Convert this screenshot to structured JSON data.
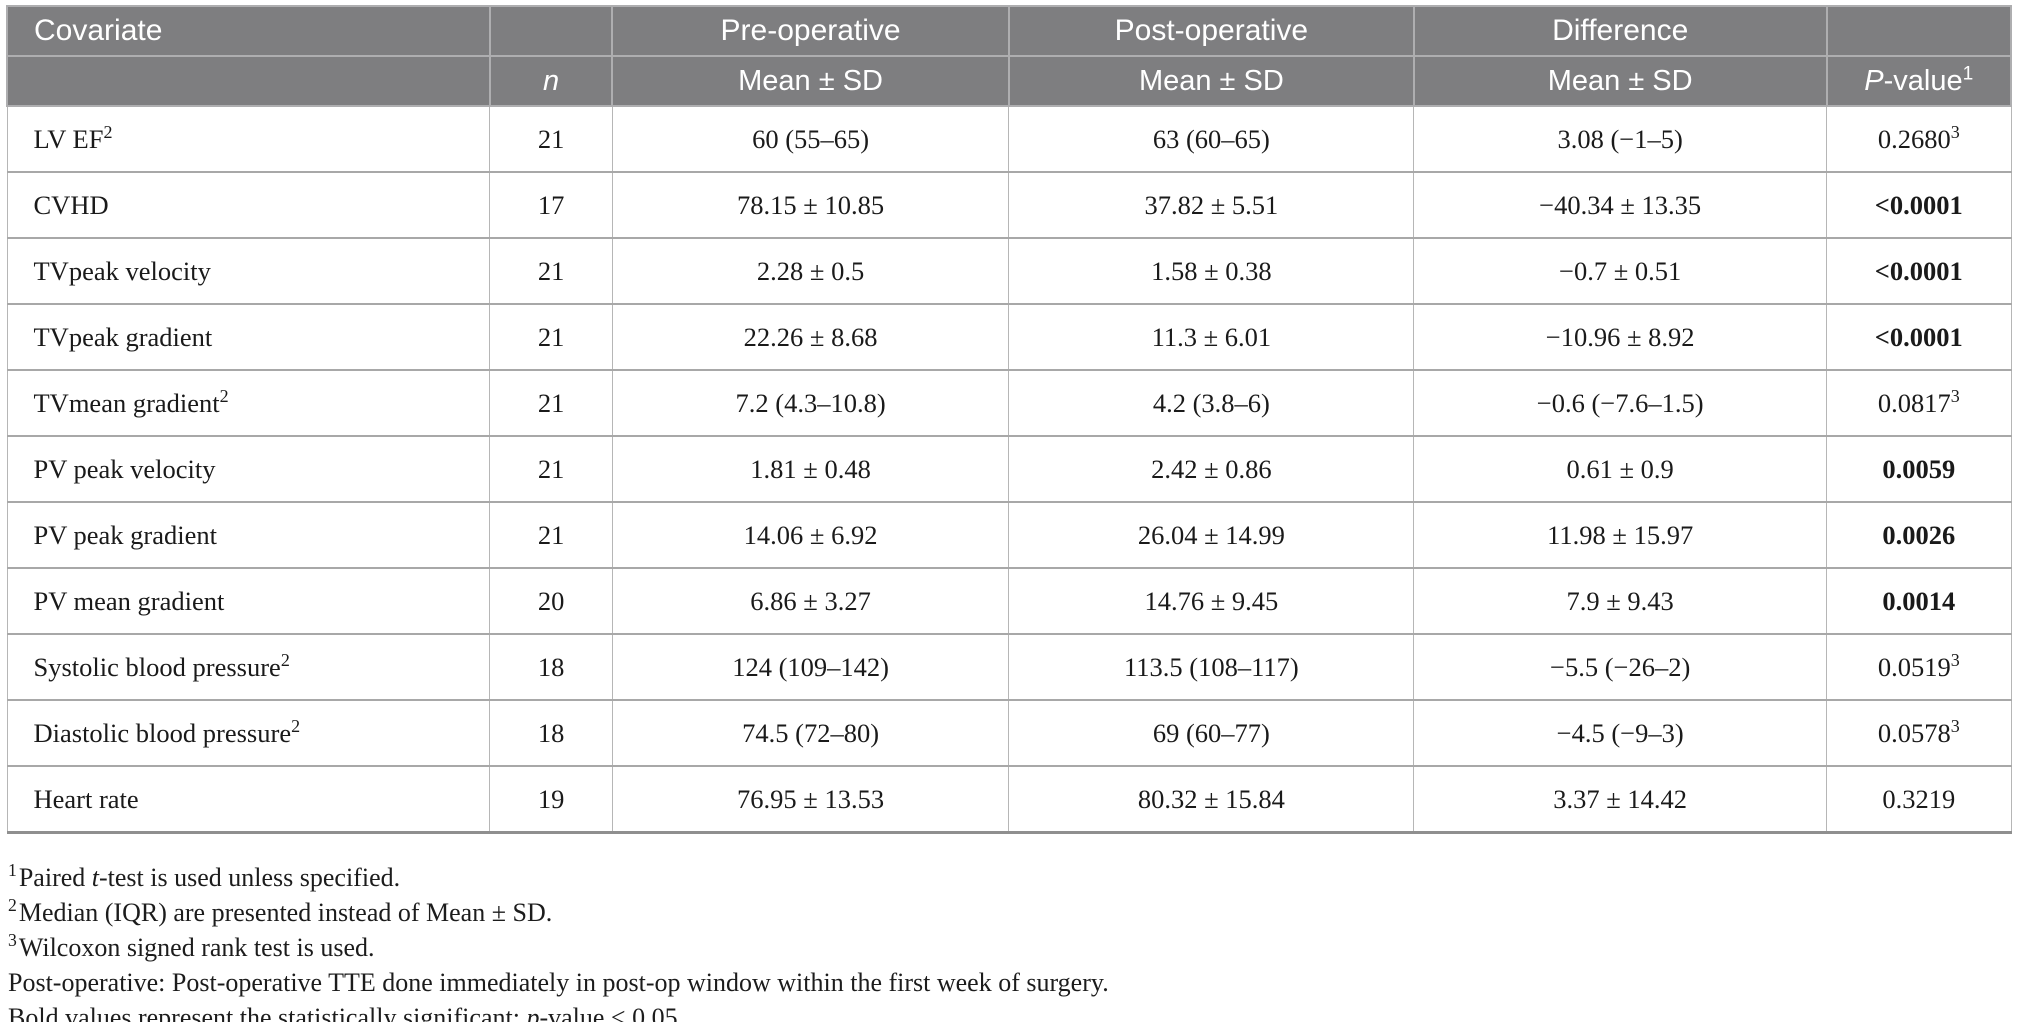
{
  "colors": {
    "header_bg": "#7e7e80",
    "header_text": "#ffffff",
    "body_text": "#1a1a1a",
    "grid_line": "#a8a8a8",
    "table_bottom_border": "#8f8f8f"
  },
  "table": {
    "header": {
      "covariate": "Covariate",
      "pre": "Pre-operative",
      "post": "Post-operative",
      "diff": "Difference",
      "n": "n",
      "mean_sd": "Mean ± SD",
      "p_italic": "P",
      "p_rest": "-value",
      "p_sup": "1"
    },
    "rows": [
      {
        "label": "LV EF",
        "sup": "2",
        "n": "21",
        "pre": "60 (55–65)",
        "post": "63 (60–65)",
        "diff": "3.08 (−1–5)",
        "p": "0.2680",
        "p_sup": "3",
        "p_bold": false
      },
      {
        "label": "CVHD",
        "sup": "",
        "n": "17",
        "pre": "78.15 ± 10.85",
        "post": "37.82 ± 5.51",
        "diff": "−40.34 ± 13.35",
        "p": "<0.0001",
        "p_sup": "",
        "p_bold": true
      },
      {
        "label": "TVpeak velocity",
        "sup": "",
        "n": "21",
        "pre": "2.28 ± 0.5",
        "post": "1.58 ± 0.38",
        "diff": "−0.7 ± 0.51",
        "p": "<0.0001",
        "p_sup": "",
        "p_bold": true
      },
      {
        "label": "TVpeak gradient",
        "sup": "",
        "n": "21",
        "pre": "22.26 ± 8.68",
        "post": "11.3 ± 6.01",
        "diff": "−10.96 ± 8.92",
        "p": "<0.0001",
        "p_sup": "",
        "p_bold": true
      },
      {
        "label": "TVmean gradient",
        "sup": "2",
        "n": "21",
        "pre": "7.2 (4.3–10.8)",
        "post": "4.2 (3.8–6)",
        "diff": "−0.6 (−7.6–1.5)",
        "p": "0.0817",
        "p_sup": "3",
        "p_bold": false
      },
      {
        "label": "PV peak velocity",
        "sup": "",
        "n": "21",
        "pre": "1.81 ± 0.48",
        "post": "2.42 ± 0.86",
        "diff": "0.61 ± 0.9",
        "p": "0.0059",
        "p_sup": "",
        "p_bold": true
      },
      {
        "label": "PV peak gradient",
        "sup": "",
        "n": "21",
        "pre": "14.06 ± 6.92",
        "post": "26.04 ± 14.99",
        "diff": "11.98 ± 15.97",
        "p": "0.0026",
        "p_sup": "",
        "p_bold": true
      },
      {
        "label": "PV mean gradient",
        "sup": "",
        "n": "20",
        "pre": "6.86 ± 3.27",
        "post": "14.76 ± 9.45",
        "diff": "7.9 ± 9.43",
        "p": "0.0014",
        "p_sup": "",
        "p_bold": true
      },
      {
        "label": "Systolic blood pressure",
        "sup": "2",
        "n": "18",
        "pre": "124 (109–142)",
        "post": "113.5 (108–117)",
        "diff": "−5.5 (−26–2)",
        "p": "0.0519",
        "p_sup": "3",
        "p_bold": false
      },
      {
        "label": "Diastolic blood pressure",
        "sup": "2",
        "n": "18",
        "pre": "74.5 (72–80)",
        "post": "69 (60–77)",
        "diff": "−4.5 (−9–3)",
        "p": "0.0578",
        "p_sup": "3",
        "p_bold": false
      },
      {
        "label": "Heart rate",
        "sup": "",
        "n": "19",
        "pre": "76.95 ± 13.53",
        "post": "80.32 ± 15.84",
        "diff": "3.37 ± 14.42",
        "p": "0.3219",
        "p_sup": "",
        "p_bold": false
      }
    ]
  },
  "footnotes": [
    {
      "sup": "1",
      "t1": "Paired ",
      "it": "t",
      "t2": "-test is used unless specified."
    },
    {
      "sup": "2",
      "t1": "Median (IQR) are presented instead of Mean ± SD.",
      "it": "",
      "t2": ""
    },
    {
      "sup": "3",
      "t1": "Wilcoxon signed rank test is used.",
      "it": "",
      "t2": ""
    },
    {
      "sup": "",
      "t1": "Post-operative: Post-operative TTE done immediately in post-op window within the first week of surgery.",
      "it": "",
      "t2": ""
    },
    {
      "sup": "",
      "t1": "Bold values represent the statistically significant; ",
      "it": "p",
      "t2": "-value < 0.05."
    }
  ]
}
